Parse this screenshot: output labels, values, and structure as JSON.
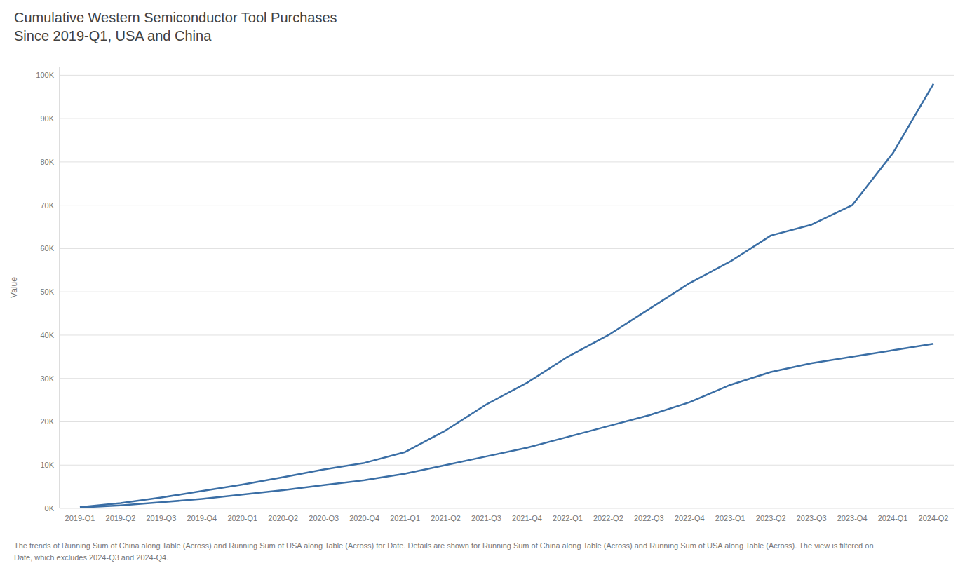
{
  "chart_data": {
    "type": "line",
    "title": "Cumulative Western Semiconductor Tool Purchases\nSince 2019-Q1, USA and China",
    "y_label": "Value",
    "annotations": [
      "The trends of Running Sum of China along Table (Across) and Running Sum of USA along Table (Across) for Date.  Details are shown for Running Sum of China along Table (Across) and Running Sum of USA along Table (Across). The view is filtered on",
      "Date, which excludes 2024-Q3 and 2024-Q4."
    ],
    "categories": [
      "2019-Q1",
      "2019-Q2",
      "2019-Q3",
      "2019-Q4",
      "2020-Q1",
      "2020-Q2",
      "2020-Q3",
      "2020-Q4",
      "2021-Q1",
      "2021-Q2",
      "2021-Q3",
      "2021-Q4",
      "2022-Q1",
      "2022-Q2",
      "2022-Q3",
      "2022-Q4",
      "2023-Q1",
      "2023-Q2",
      "2023-Q3",
      "2023-Q4",
      "2024-Q1",
      "2024-Q2"
    ],
    "series": [
      {
        "color": "#3a6ea5",
        "values": [
          300,
          1200,
          2500,
          4000,
          5500,
          7200,
          9000,
          10500,
          13000,
          18000,
          24000,
          29000,
          35000,
          40000,
          46000,
          52000,
          57000,
          63000,
          65500,
          70000,
          82000,
          98000
        ]
      },
      {
        "color": "#3a6ea5",
        "values": [
          200,
          700,
          1400,
          2200,
          3200,
          4200,
          5400,
          6500,
          8000,
          10000,
          12000,
          14000,
          16500,
          19000,
          21500,
          24500,
          28500,
          31500,
          33500,
          35000,
          36500,
          38000
        ]
      }
    ],
    "ylim": [
      0,
      102000
    ],
    "yticks": [
      {
        "value": 0,
        "label": "0K"
      },
      {
        "value": 10000,
        "label": "10K"
      },
      {
        "value": 20000,
        "label": "20K"
      },
      {
        "value": 30000,
        "label": "30K"
      },
      {
        "value": 40000,
        "label": "40K"
      },
      {
        "value": 50000,
        "label": "50K"
      },
      {
        "value": 60000,
        "label": "60K"
      },
      {
        "value": 70000,
        "label": "70K"
      },
      {
        "value": 80000,
        "label": "80K"
      },
      {
        "value": 90000,
        "label": "90K"
      },
      {
        "value": 100000,
        "label": "100K"
      }
    ],
    "grid": true
  }
}
